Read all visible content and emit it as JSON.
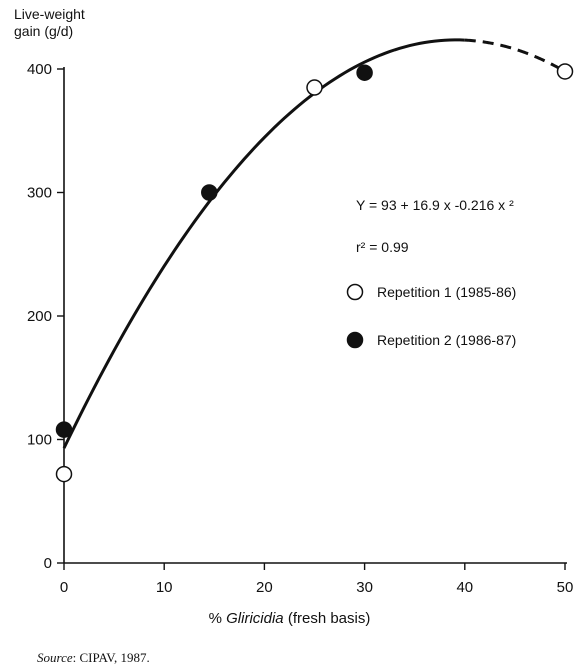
{
  "chart_data": {
    "type": "scatter",
    "ylabel_line1": "Live-weight",
    "ylabel_line2": "gain (g/d)",
    "xlabel_prefix": "% ",
    "xlabel_italic": "Gliricidia",
    "xlabel_suffix": " (fresh basis)",
    "xlim": [
      0,
      50
    ],
    "ylim": [
      0,
      400
    ],
    "x_ticks": [
      "0",
      "10",
      "20",
      "30",
      "40",
      "50"
    ],
    "y_ticks": [
      "0",
      "100",
      "200",
      "300",
      "400"
    ],
    "x_tick_values": [
      0,
      10,
      20,
      30,
      40,
      50
    ],
    "y_tick_values": [
      0,
      100,
      200,
      300,
      400
    ],
    "series": [
      {
        "name": "Repetition 1 (1985-86)",
        "marker": "open-circle",
        "points": [
          [
            0,
            72
          ],
          [
            25,
            385
          ],
          [
            50,
            398
          ]
        ]
      },
      {
        "name": "Repetition 2 (1986-87)",
        "marker": "filled-circle",
        "points": [
          [
            0,
            108
          ],
          [
            14.5,
            300
          ],
          [
            30,
            397
          ]
        ]
      }
    ],
    "fit": {
      "equation": "Y = 93 + 16.9 x -0.216 x ²",
      "r2": "r² = 0.99",
      "intercept": 93,
      "b1": 16.9,
      "b2": -0.216,
      "solid_x_range": [
        0,
        40
      ],
      "dashed_x_range": [
        40,
        50
      ]
    },
    "grid": false
  },
  "source_label": "Source",
  "source_text": ": CIPAV, 1987."
}
